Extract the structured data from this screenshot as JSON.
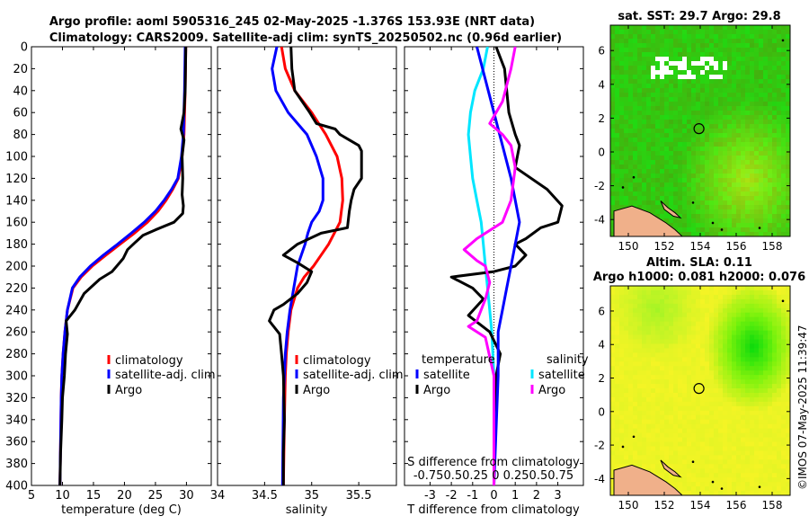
{
  "title": {
    "line1": "Argo profile: aoml 5905316_245 02-May-2025 -1.376S 153.93E (NRT data)",
    "line2": "Climatology: CARS2009. Satellite-adj clim: synTS_20250502.nc (0.96d earlier)"
  },
  "credit": "©IMOS 07-May-2025 11:39:47",
  "colors": {
    "climatology": "#ff0000",
    "satellite": "#0000ff",
    "argo": "#000000",
    "t_satellite": "#00e6ff",
    "s_satellite": "#ff00ff",
    "s_argo": "#000000"
  },
  "chart_data": [
    {
      "type": "line",
      "name": "temperature-profile",
      "xlabel": "temperature (deg C)",
      "ylabel": "depth",
      "xlim": [
        5,
        34
      ],
      "ylim": [
        0,
        400
      ],
      "xticks": [
        5,
        10,
        15,
        20,
        25,
        30
      ],
      "yticks": [
        0,
        20,
        40,
        60,
        80,
        100,
        120,
        140,
        160,
        180,
        200,
        220,
        240,
        260,
        280,
        300,
        320,
        340,
        360,
        380,
        400
      ],
      "legend": [
        "climatology",
        "satellite-adj. clim",
        "Argo"
      ],
      "series": [
        {
          "name": "climatology",
          "color": "#ff0000",
          "x": [
            29.9,
            29.8,
            29.6,
            29.3,
            28.7,
            27.8,
            26.7,
            25.4,
            23.7,
            21.6,
            19.3,
            17.0,
            14.8,
            13.0,
            11.7,
            10.8,
            10.4,
            10.1,
            9.9,
            9.8,
            9.7,
            9.6
          ],
          "depth": [
            0,
            40,
            80,
            100,
            120,
            130,
            140,
            150,
            160,
            170,
            180,
            190,
            200,
            210,
            220,
            240,
            260,
            280,
            300,
            320,
            360,
            400
          ]
        },
        {
          "name": "satellite-adj. clim",
          "color": "#0000ff",
          "x": [
            29.8,
            29.7,
            29.5,
            29.2,
            28.6,
            27.6,
            26.4,
            25.0,
            23.2,
            21.1,
            18.9,
            16.6,
            14.5,
            12.8,
            11.6,
            10.8,
            10.4,
            10.1,
            9.9,
            9.8,
            9.7,
            9.6
          ],
          "depth": [
            0,
            40,
            80,
            100,
            120,
            130,
            140,
            150,
            160,
            170,
            180,
            190,
            200,
            210,
            220,
            240,
            260,
            280,
            300,
            320,
            360,
            400
          ]
        },
        {
          "name": "Argo",
          "color": "#000000",
          "x": [
            29.9,
            29.8,
            29.6,
            29.1,
            29.6,
            29.3,
            29.4,
            29.3,
            29.5,
            29.4,
            28.0,
            25.0,
            23.0,
            21.8,
            20.5,
            19.8,
            18.0,
            16.0,
            13.5,
            12.0,
            10.6,
            10.8,
            10.5,
            10.3,
            10.0,
            9.9,
            9.7,
            9.6
          ],
          "depth": [
            0,
            40,
            60,
            75,
            85,
            100,
            120,
            135,
            145,
            152,
            160,
            167,
            172,
            178,
            185,
            193,
            205,
            212,
            225,
            240,
            250,
            262,
            280,
            300,
            320,
            340,
            370,
            400
          ]
        }
      ]
    },
    {
      "type": "line",
      "name": "salinity-profile",
      "xlabel": "salinity",
      "ylabel": "depth",
      "xlim": [
        34,
        35.9
      ],
      "ylim": [
        0,
        400
      ],
      "xticks": [
        34,
        34.5,
        35,
        35.5
      ],
      "legend": [
        "climatology",
        "satellite-adj. clim",
        "Argo"
      ],
      "series": [
        {
          "name": "climatology",
          "color": "#ff0000",
          "x": [
            34.68,
            34.72,
            34.82,
            35.0,
            35.15,
            35.27,
            35.32,
            35.33,
            35.3,
            35.24,
            35.18,
            35.1,
            35.02,
            34.92,
            34.85,
            34.78,
            34.75,
            34.73,
            34.72,
            34.71,
            34.7
          ],
          "depth": [
            0,
            20,
            40,
            60,
            80,
            100,
            120,
            140,
            160,
            170,
            180,
            190,
            200,
            210,
            220,
            240,
            260,
            280,
            300,
            340,
            400
          ]
        },
        {
          "name": "satellite-adj. clim",
          "color": "#0000ff",
          "x": [
            34.63,
            34.58,
            34.62,
            34.75,
            34.95,
            35.05,
            35.12,
            35.12,
            35.08,
            35.0,
            34.96,
            34.93,
            34.89,
            34.85,
            34.81,
            34.77,
            34.74,
            34.72,
            34.7,
            34.69
          ],
          "depth": [
            0,
            20,
            40,
            60,
            80,
            100,
            120,
            140,
            150,
            160,
            170,
            180,
            190,
            200,
            220,
            240,
            260,
            280,
            320,
            400
          ]
        },
        {
          "name": "Argo",
          "color": "#000000",
          "x": [
            34.78,
            34.79,
            34.82,
            34.98,
            35.05,
            35.25,
            35.3,
            35.5,
            35.53,
            35.53,
            35.45,
            35.42,
            35.4,
            35.38,
            35.1,
            34.85,
            34.7,
            34.85,
            35.0,
            34.95,
            34.85,
            34.7,
            34.6,
            34.55,
            34.66,
            34.68,
            34.7,
            34.71,
            34.7,
            34.7
          ],
          "depth": [
            0,
            20,
            40,
            60,
            70,
            75,
            80,
            90,
            95,
            120,
            130,
            140,
            150,
            165,
            170,
            180,
            190,
            197,
            205,
            215,
            225,
            235,
            240,
            250,
            262,
            280,
            300,
            340,
            370,
            400
          ]
        }
      ]
    },
    {
      "type": "line",
      "name": "difference-profile",
      "xlabel": "T difference from climatology",
      "xlabel_top": "S difference from climatology",
      "s_tick_labels": "-0.750.50.25 0  0.250.50.75",
      "ylabel": "depth",
      "xlim": [
        -4.2,
        4.2
      ],
      "ylim": [
        0,
        400
      ],
      "xticks": [
        -3,
        -2,
        -1,
        0,
        1,
        2,
        3
      ],
      "legend_titles": {
        "temperature": "temperature",
        "salinity": "salinity"
      },
      "legend": {
        "temperature": [
          "satellite",
          "Argo"
        ],
        "salinity": [
          "satellite",
          "Argo"
        ]
      },
      "series": [
        {
          "name": "T satellite",
          "color": "#00e6ff",
          "x": [
            -0.3,
            -0.5,
            -0.9,
            -1.1,
            -1.2,
            -1.1,
            -1.0,
            -0.8,
            -0.6,
            -0.5,
            -0.4,
            -0.3,
            -0.2,
            -0.1,
            0.0,
            0.0,
            0.0
          ],
          "depth": [
            0,
            20,
            40,
            60,
            80,
            100,
            120,
            140,
            160,
            180,
            200,
            220,
            240,
            260,
            300,
            340,
            400
          ]
        },
        {
          "name": "T Argo",
          "color": "#000000",
          "x": [
            0.1,
            0.5,
            0.6,
            0.7,
            1.0,
            1.2,
            1.0,
            2.5,
            3.2,
            3.0,
            2.2,
            1.5,
            1.0,
            1.5,
            1.0,
            0.0,
            -2.0,
            -1.0,
            -0.5,
            -1.2,
            -0.2,
            0.3,
            0.1,
            0.0,
            0.0
          ],
          "depth": [
            0,
            20,
            40,
            60,
            80,
            90,
            110,
            130,
            145,
            160,
            165,
            175,
            180,
            190,
            200,
            205,
            210,
            220,
            230,
            245,
            260,
            280,
            300,
            340,
            400
          ]
        },
        {
          "name": "S satellite",
          "color": "#00e6ff",
          "x": [
            -0.2,
            -0.1,
            0.0,
            0.1,
            0.2,
            0.3,
            0.2,
            0.15,
            0.1,
            0.05,
            0.05,
            0.03,
            0.0
          ],
          "depth": [
            0,
            30,
            60,
            90,
            120,
            160,
            200,
            220,
            240,
            260,
            300,
            340,
            400
          ]
        },
        {
          "name": "S Argo",
          "color": "#ff00ff",
          "x": [
            0.25,
            0.2,
            0.1,
            -0.05,
            0.1,
            0.2,
            0.25,
            0.2,
            0.1,
            -0.2,
            -0.35,
            -0.2,
            -0.1,
            -0.05,
            -0.1,
            -0.2,
            -0.3,
            -0.1,
            0.0,
            0.0,
            0.0
          ],
          "depth": [
            0,
            20,
            50,
            70,
            80,
            90,
            110,
            140,
            160,
            175,
            185,
            195,
            200,
            215,
            230,
            250,
            255,
            265,
            300,
            340,
            400
          ]
        }
      ]
    },
    {
      "type": "heatmap",
      "name": "sst-map",
      "title": "sat. SST: 29.7 Argo: 29.8",
      "xlim": [
        149,
        159
      ],
      "ylim": [
        -5,
        7.5
      ],
      "xticks": [
        150,
        152,
        154,
        156,
        158
      ],
      "yticks": [
        -4,
        -2,
        0,
        2,
        4,
        6
      ],
      "marker": {
        "lon": 153.93,
        "lat": 1.376
      }
    },
    {
      "type": "heatmap",
      "name": "sla-map",
      "title": "Altim. SLA: 0.11",
      "subtitle": "Argo h1000: 0.081 h2000: 0.076",
      "xlim": [
        149,
        159
      ],
      "ylim": [
        -5,
        7.5
      ],
      "xticks": [
        150,
        152,
        154,
        156,
        158
      ],
      "yticks": [
        -4,
        -2,
        0,
        2,
        4,
        6
      ],
      "marker": {
        "lon": 153.93,
        "lat": 1.376
      }
    }
  ]
}
